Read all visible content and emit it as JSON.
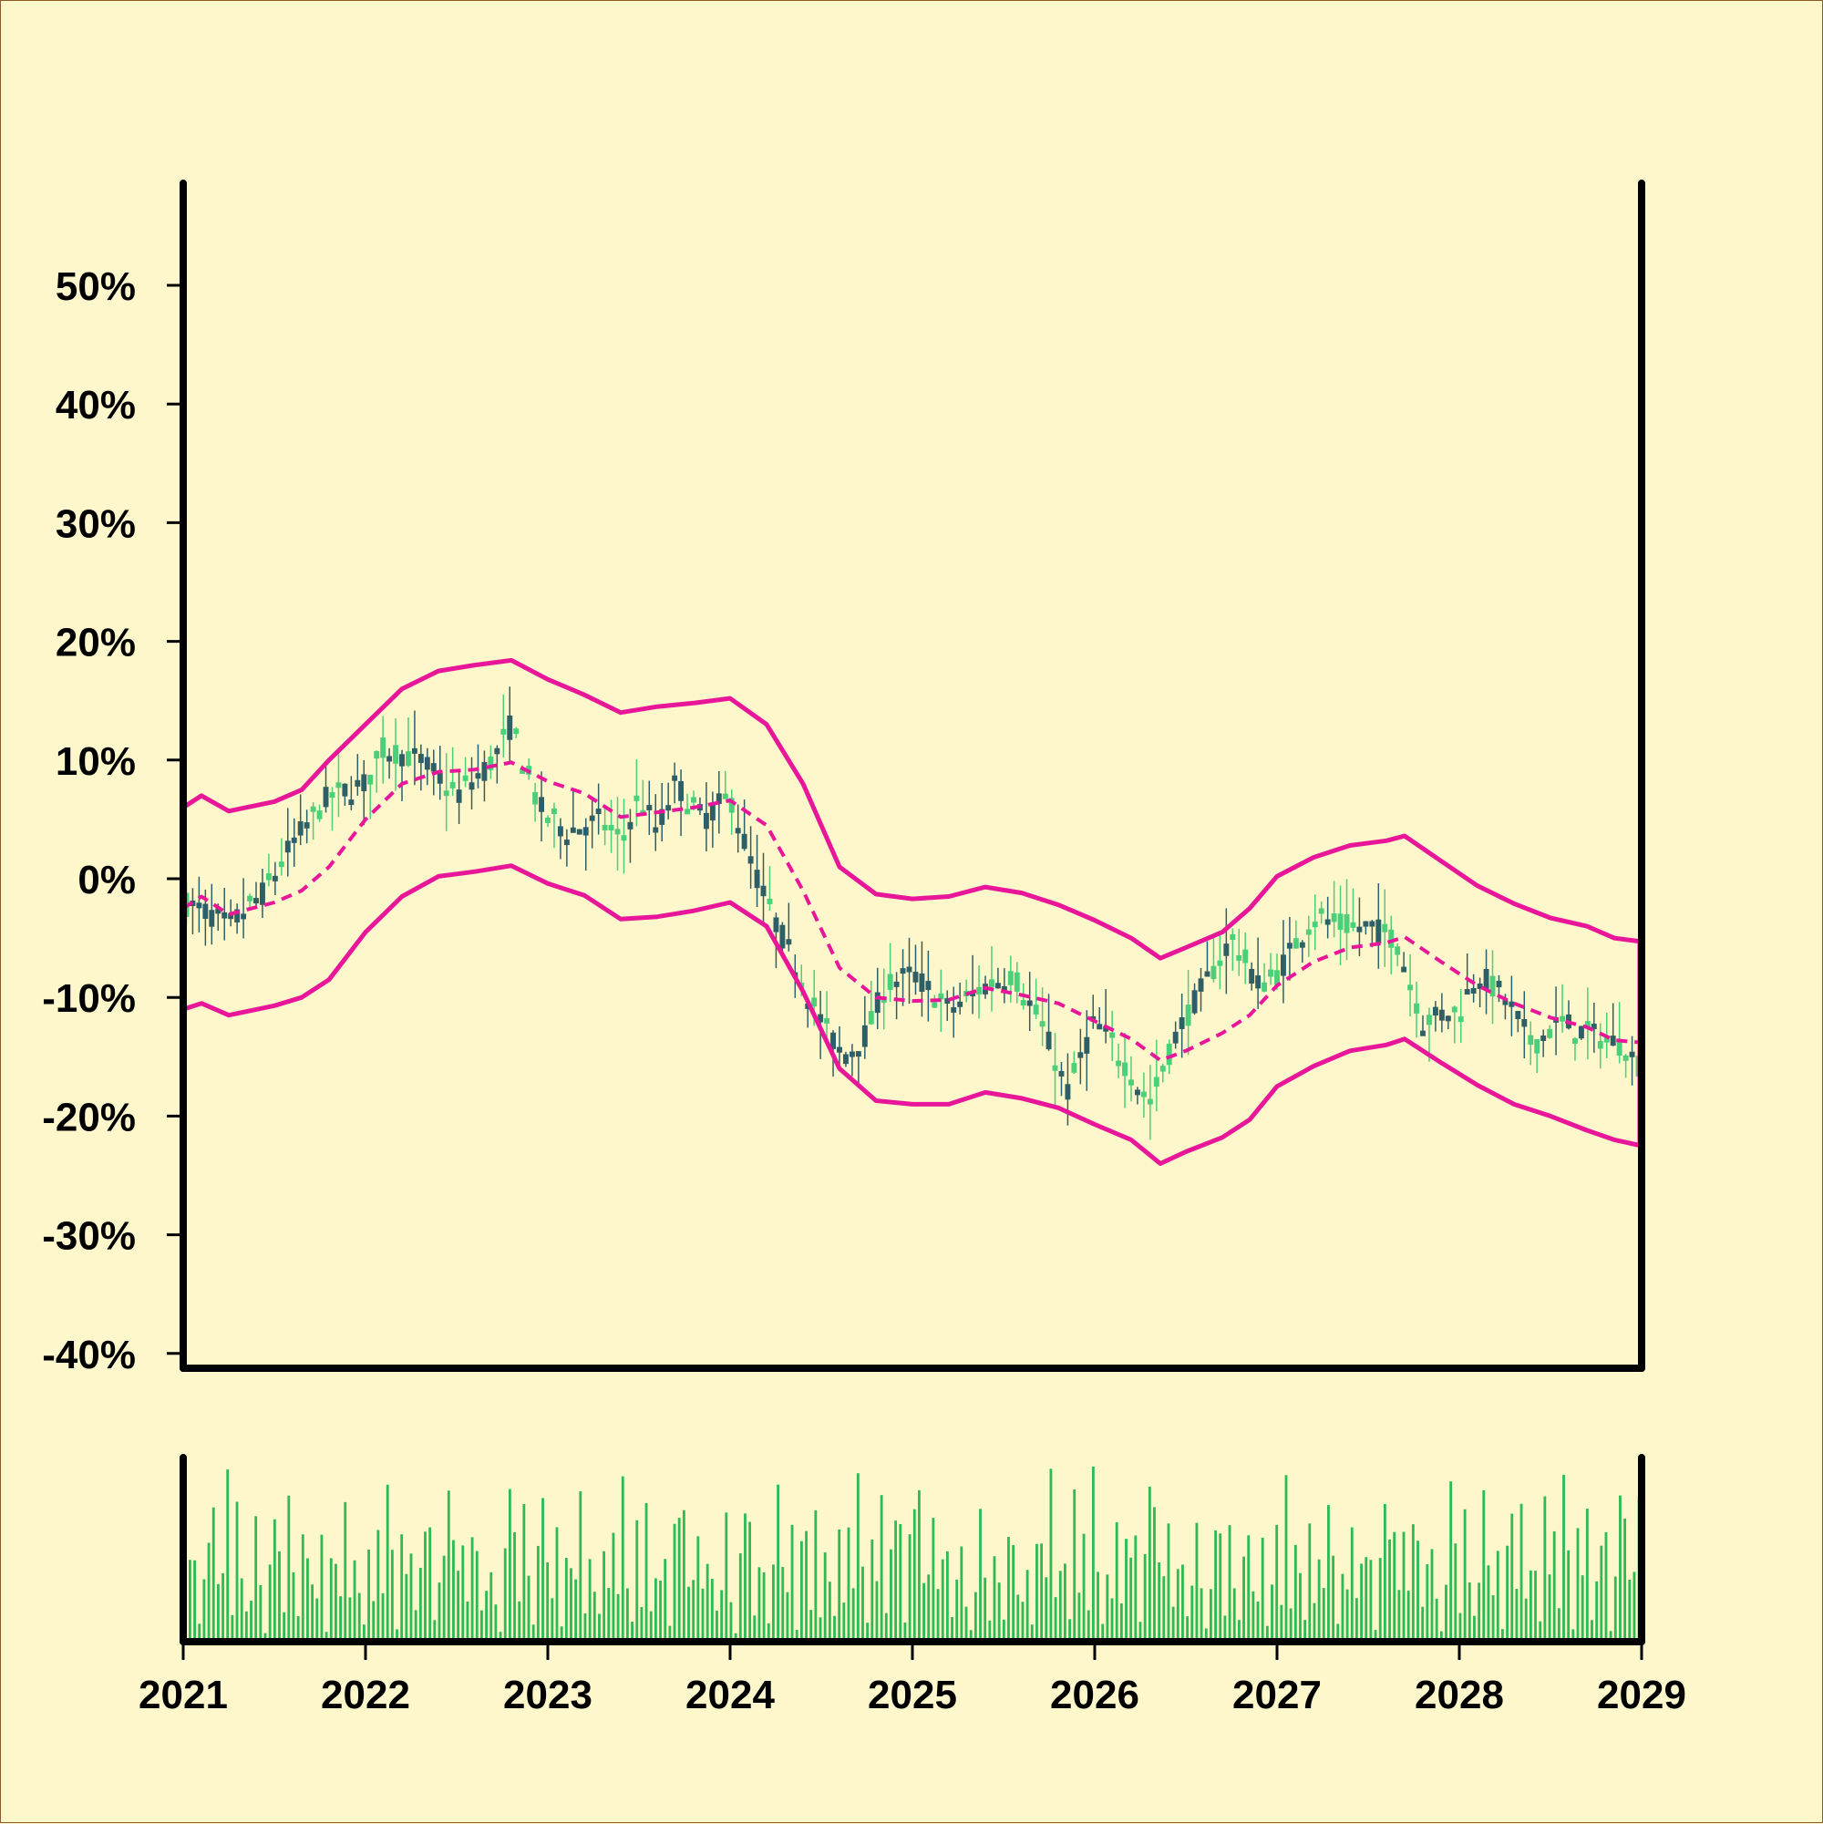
{
  "colors": {
    "background": "#fff7cc",
    "frame_border": "#8b5a2b",
    "axis": "#000000",
    "candle_up": "#4ccf7a",
    "candle_down": "#2f5f66",
    "bands": "#e8179a",
    "volume": "#2dbb55"
  },
  "chart_data": {
    "type": "candlestick",
    "title": "",
    "xlabel": "",
    "ylabel": "",
    "xlim": [
      "2021",
      "2029"
    ],
    "ylim": [
      -40,
      58
    ],
    "y_unit": "%",
    "grid": false,
    "legend": "none",
    "y_ticks": [
      {
        "value": 50,
        "label": "50%"
      },
      {
        "value": 40,
        "label": "40%"
      },
      {
        "value": 30,
        "label": "30%"
      },
      {
        "value": 20,
        "label": "20%"
      },
      {
        "value": 10,
        "label": "10%"
      },
      {
        "value": 0,
        "label": "0%"
      },
      {
        "value": -10,
        "label": "-10%"
      },
      {
        "value": -20,
        "label": "-20%"
      },
      {
        "value": -30,
        "label": "-30%"
      },
      {
        "value": -40,
        "label": "-40%"
      }
    ],
    "x_ticks": [
      {
        "value": 2021,
        "label": "2021"
      },
      {
        "value": 2022,
        "label": "2022"
      },
      {
        "value": 2023,
        "label": "2023"
      },
      {
        "value": 2024,
        "label": "2024"
      },
      {
        "value": 2025,
        "label": "2025"
      },
      {
        "value": 2026,
        "label": "2026"
      },
      {
        "value": 2027,
        "label": "2027"
      },
      {
        "value": 2028,
        "label": "2028"
      },
      {
        "value": 2029,
        "label": "2029"
      }
    ],
    "price_path": [
      {
        "x": 2021.0,
        "y": -2
      },
      {
        "x": 2021.15,
        "y": -3
      },
      {
        "x": 2021.25,
        "y": -4
      },
      {
        "x": 2021.45,
        "y": -1
      },
      {
        "x": 2021.6,
        "y": 3
      },
      {
        "x": 2021.8,
        "y": 7
      },
      {
        "x": 2022.0,
        "y": 8
      },
      {
        "x": 2022.1,
        "y": 11
      },
      {
        "x": 2022.3,
        "y": 10
      },
      {
        "x": 2022.5,
        "y": 7
      },
      {
        "x": 2022.7,
        "y": 10
      },
      {
        "x": 2022.8,
        "y": 13
      },
      {
        "x": 2022.95,
        "y": 6
      },
      {
        "x": 2023.1,
        "y": 4
      },
      {
        "x": 2023.3,
        "y": 5
      },
      {
        "x": 2023.4,
        "y": 3
      },
      {
        "x": 2023.5,
        "y": 7
      },
      {
        "x": 2023.6,
        "y": 4
      },
      {
        "x": 2023.7,
        "y": 8
      },
      {
        "x": 2023.85,
        "y": 5
      },
      {
        "x": 2024.0,
        "y": 7
      },
      {
        "x": 2024.1,
        "y": 2
      },
      {
        "x": 2024.2,
        "y": -2
      },
      {
        "x": 2024.35,
        "y": -7
      },
      {
        "x": 2024.5,
        "y": -12
      },
      {
        "x": 2024.62,
        "y": -15
      },
      {
        "x": 2024.75,
        "y": -13
      },
      {
        "x": 2024.85,
        "y": -9
      },
      {
        "x": 2025.0,
        "y": -8
      },
      {
        "x": 2025.2,
        "y": -11
      },
      {
        "x": 2025.4,
        "y": -9
      },
      {
        "x": 2025.55,
        "y": -8
      },
      {
        "x": 2025.7,
        "y": -12
      },
      {
        "x": 2025.85,
        "y": -18
      },
      {
        "x": 2026.0,
        "y": -12
      },
      {
        "x": 2026.1,
        "y": -14
      },
      {
        "x": 2026.3,
        "y": -19
      },
      {
        "x": 2026.45,
        "y": -13
      },
      {
        "x": 2026.6,
        "y": -9
      },
      {
        "x": 2026.75,
        "y": -5
      },
      {
        "x": 2026.9,
        "y": -9
      },
      {
        "x": 2027.0,
        "y": -8
      },
      {
        "x": 2027.2,
        "y": -3
      },
      {
        "x": 2027.35,
        "y": -4
      },
      {
        "x": 2027.5,
        "y": -4
      },
      {
        "x": 2027.65,
        "y": -5
      },
      {
        "x": 2027.8,
        "y": -12
      },
      {
        "x": 2028.0,
        "y": -11
      },
      {
        "x": 2028.1,
        "y": -8
      },
      {
        "x": 2028.25,
        "y": -10
      },
      {
        "x": 2028.4,
        "y": -14
      },
      {
        "x": 2028.55,
        "y": -12
      },
      {
        "x": 2028.7,
        "y": -13
      },
      {
        "x": 2028.9,
        "y": -14
      },
      {
        "x": 2029.0,
        "y": -16
      }
    ],
    "bands": {
      "middle": [
        {
          "x": 2021.0,
          "y": -2.5
        },
        {
          "x": 2021.1,
          "y": -1.5
        },
        {
          "x": 2021.25,
          "y": -3
        },
        {
          "x": 2021.5,
          "y": -2
        },
        {
          "x": 2021.65,
          "y": -1
        },
        {
          "x": 2021.8,
          "y": 1
        },
        {
          "x": 2022.0,
          "y": 5
        },
        {
          "x": 2022.2,
          "y": 8
        },
        {
          "x": 2022.4,
          "y": 9
        },
        {
          "x": 2022.6,
          "y": 9.2
        },
        {
          "x": 2022.8,
          "y": 9.8
        },
        {
          "x": 2023.0,
          "y": 8.2
        },
        {
          "x": 2023.2,
          "y": 7.2
        },
        {
          "x": 2023.4,
          "y": 5.2
        },
        {
          "x": 2023.6,
          "y": 5.6
        },
        {
          "x": 2023.8,
          "y": 6
        },
        {
          "x": 2024.0,
          "y": 6.6
        },
        {
          "x": 2024.2,
          "y": 4.5
        },
        {
          "x": 2024.4,
          "y": -1
        },
        {
          "x": 2024.6,
          "y": -7.5
        },
        {
          "x": 2024.8,
          "y": -10
        },
        {
          "x": 2025.0,
          "y": -10.3
        },
        {
          "x": 2025.2,
          "y": -10.2
        },
        {
          "x": 2025.4,
          "y": -9.2
        },
        {
          "x": 2025.6,
          "y": -9.8
        },
        {
          "x": 2025.8,
          "y": -10.5
        },
        {
          "x": 2026.0,
          "y": -12
        },
        {
          "x": 2026.2,
          "y": -13.5
        },
        {
          "x": 2026.36,
          "y": -15.3
        },
        {
          "x": 2026.5,
          "y": -14.5
        },
        {
          "x": 2026.7,
          "y": -13
        },
        {
          "x": 2026.85,
          "y": -11.5
        },
        {
          "x": 2027.0,
          "y": -9
        },
        {
          "x": 2027.2,
          "y": -7
        },
        {
          "x": 2027.4,
          "y": -5.8
        },
        {
          "x": 2027.6,
          "y": -5.4
        },
        {
          "x": 2027.7,
          "y": -4.9
        },
        {
          "x": 2027.9,
          "y": -7
        },
        {
          "x": 2028.1,
          "y": -9
        },
        {
          "x": 2028.3,
          "y": -10.5
        },
        {
          "x": 2028.5,
          "y": -11.7
        },
        {
          "x": 2028.7,
          "y": -12.5
        },
        {
          "x": 2028.85,
          "y": -13.6
        },
        {
          "x": 2029.0,
          "y": -13.8
        }
      ],
      "upper": [
        {
          "x": 2021.0,
          "y": 6
        },
        {
          "x": 2021.1,
          "y": 7
        },
        {
          "x": 2021.25,
          "y": 5.7
        },
        {
          "x": 2021.5,
          "y": 6.5
        },
        {
          "x": 2021.65,
          "y": 7.5
        },
        {
          "x": 2021.8,
          "y": 10
        },
        {
          "x": 2022.0,
          "y": 13
        },
        {
          "x": 2022.2,
          "y": 16
        },
        {
          "x": 2022.4,
          "y": 17.5
        },
        {
          "x": 2022.6,
          "y": 18
        },
        {
          "x": 2022.8,
          "y": 18.4
        },
        {
          "x": 2023.0,
          "y": 16.8
        },
        {
          "x": 2023.2,
          "y": 15.5
        },
        {
          "x": 2023.4,
          "y": 14
        },
        {
          "x": 2023.6,
          "y": 14.5
        },
        {
          "x": 2023.8,
          "y": 14.8
        },
        {
          "x": 2024.0,
          "y": 15.2
        },
        {
          "x": 2024.2,
          "y": 13
        },
        {
          "x": 2024.4,
          "y": 8
        },
        {
          "x": 2024.6,
          "y": 1
        },
        {
          "x": 2024.8,
          "y": -1.3
        },
        {
          "x": 2025.0,
          "y": -1.7
        },
        {
          "x": 2025.2,
          "y": -1.5
        },
        {
          "x": 2025.4,
          "y": -0.7
        },
        {
          "x": 2025.6,
          "y": -1.2
        },
        {
          "x": 2025.8,
          "y": -2.2
        },
        {
          "x": 2026.0,
          "y": -3.5
        },
        {
          "x": 2026.2,
          "y": -5
        },
        {
          "x": 2026.36,
          "y": -6.7
        },
        {
          "x": 2026.5,
          "y": -5.8
        },
        {
          "x": 2026.7,
          "y": -4.5
        },
        {
          "x": 2026.85,
          "y": -2.5
        },
        {
          "x": 2027.0,
          "y": 0.2
        },
        {
          "x": 2027.2,
          "y": 1.8
        },
        {
          "x": 2027.4,
          "y": 2.8
        },
        {
          "x": 2027.6,
          "y": 3.2
        },
        {
          "x": 2027.7,
          "y": 3.6
        },
        {
          "x": 2027.9,
          "y": 1.5
        },
        {
          "x": 2028.1,
          "y": -0.6
        },
        {
          "x": 2028.3,
          "y": -2.1
        },
        {
          "x": 2028.5,
          "y": -3.3
        },
        {
          "x": 2028.7,
          "y": -4
        },
        {
          "x": 2028.85,
          "y": -5
        },
        {
          "x": 2029.0,
          "y": -5.3
        }
      ],
      "lower": [
        {
          "x": 2021.0,
          "y": -11
        },
        {
          "x": 2021.1,
          "y": -10.5
        },
        {
          "x": 2021.25,
          "y": -11.5
        },
        {
          "x": 2021.5,
          "y": -10.7
        },
        {
          "x": 2021.65,
          "y": -10
        },
        {
          "x": 2021.8,
          "y": -8.5
        },
        {
          "x": 2022.0,
          "y": -4.5
        },
        {
          "x": 2022.2,
          "y": -1.5
        },
        {
          "x": 2022.4,
          "y": 0.2
        },
        {
          "x": 2022.6,
          "y": 0.6
        },
        {
          "x": 2022.8,
          "y": 1.1
        },
        {
          "x": 2023.0,
          "y": -0.4
        },
        {
          "x": 2023.2,
          "y": -1.4
        },
        {
          "x": 2023.4,
          "y": -3.4
        },
        {
          "x": 2023.6,
          "y": -3.2
        },
        {
          "x": 2023.8,
          "y": -2.7
        },
        {
          "x": 2024.0,
          "y": -2
        },
        {
          "x": 2024.2,
          "y": -4
        },
        {
          "x": 2024.4,
          "y": -9.5
        },
        {
          "x": 2024.6,
          "y": -16
        },
        {
          "x": 2024.8,
          "y": -18.7
        },
        {
          "x": 2025.0,
          "y": -19
        },
        {
          "x": 2025.2,
          "y": -19
        },
        {
          "x": 2025.4,
          "y": -18
        },
        {
          "x": 2025.6,
          "y": -18.5
        },
        {
          "x": 2025.8,
          "y": -19.3
        },
        {
          "x": 2026.0,
          "y": -20.7
        },
        {
          "x": 2026.2,
          "y": -22
        },
        {
          "x": 2026.36,
          "y": -24
        },
        {
          "x": 2026.5,
          "y": -23
        },
        {
          "x": 2026.7,
          "y": -21.8
        },
        {
          "x": 2026.85,
          "y": -20.3
        },
        {
          "x": 2027.0,
          "y": -17.5
        },
        {
          "x": 2027.2,
          "y": -15.8
        },
        {
          "x": 2027.4,
          "y": -14.5
        },
        {
          "x": 2027.6,
          "y": -14
        },
        {
          "x": 2027.7,
          "y": -13.5
        },
        {
          "x": 2027.9,
          "y": -15.5
        },
        {
          "x": 2028.1,
          "y": -17.4
        },
        {
          "x": 2028.3,
          "y": -19
        },
        {
          "x": 2028.5,
          "y": -20
        },
        {
          "x": 2028.7,
          "y": -21.2
        },
        {
          "x": 2028.85,
          "y": -22
        },
        {
          "x": 2029.0,
          "y": -22.5
        }
      ]
    },
    "candles": {
      "count": 230,
      "up_color": "#4ccf7a",
      "down_color": "#2f5f66"
    },
    "volume": {
      "count": 310,
      "color": "#2dbb55",
      "relative_heights": [
        0.62,
        0.69,
        0.11,
        0.59,
        0.78,
        0.81,
        0.55,
        0.44,
        0.89,
        0.27,
        0.73,
        0.52,
        0.19,
        0.41,
        0.66,
        0.35,
        0.07,
        0.48,
        0.92,
        0.6,
        0.21,
        0.74,
        0.38,
        0.13,
        0.57,
        0.82,
        0.46,
        0.29,
        0.7,
        0.09,
        0.53,
        0.64,
        0.33,
        0.87,
        0.24,
        0.61,
        0.45,
        0.15,
        0.76,
        0.4,
        0.58,
        0.28,
        0.95,
        0.5,
        0.12,
        0.67,
        0.36,
        0.8,
        0.22,
        0.55
      ]
    }
  }
}
